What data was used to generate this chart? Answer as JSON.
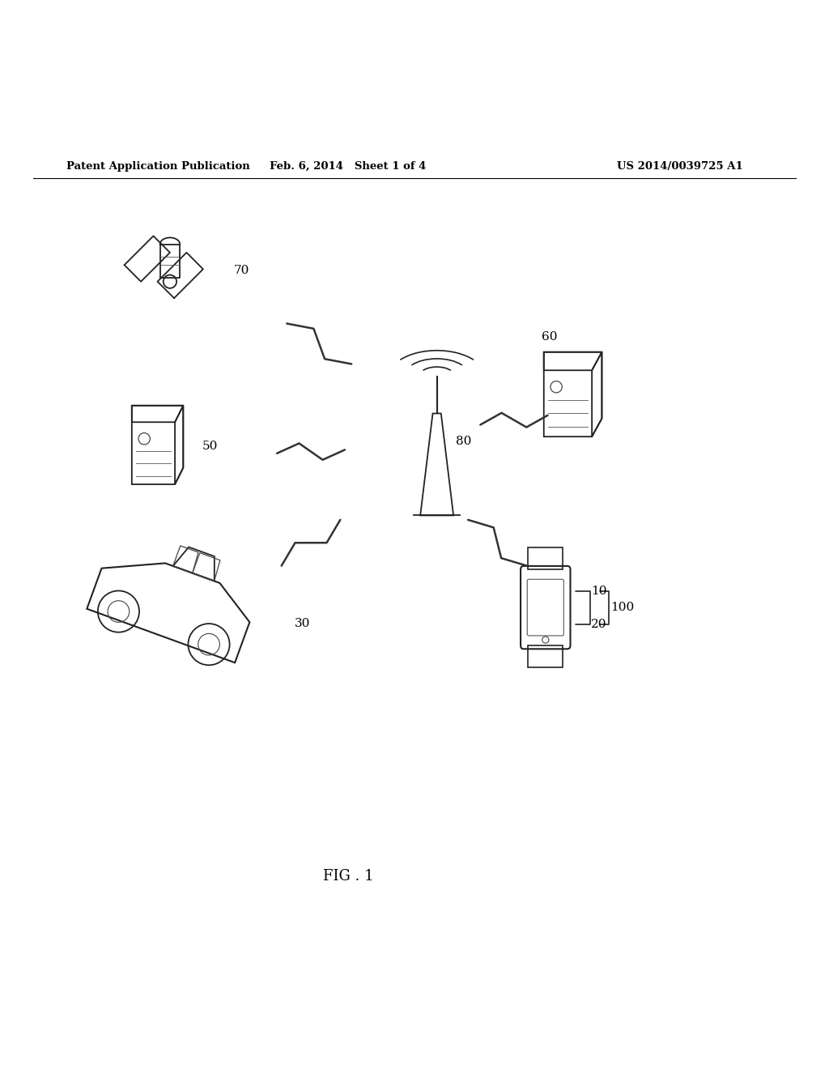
{
  "bg_color": "#ffffff",
  "header_left": "Patent Application Publication",
  "header_mid": "Feb. 6, 2014   Sheet 1 of 4",
  "header_right": "US 2014/0039725 A1",
  "fig_label": "FIG . 1"
}
